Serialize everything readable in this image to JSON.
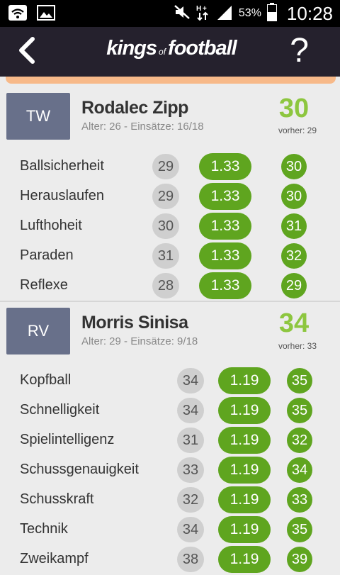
{
  "status_bar": {
    "icons": [
      "wifi-icon",
      "image-icon",
      "mute-icon",
      "data-arrows-icon",
      "signal-icon",
      "battery-icon"
    ],
    "battery": "53%",
    "time": "10:28"
  },
  "header": {
    "logo_part1": "kings",
    "logo_part2": "of",
    "logo_part3": "football",
    "help_label": "?"
  },
  "players": [
    {
      "position": "TW",
      "name": "Rodalec Zipp",
      "meta": "Alter: 26 - Einsätze: 16/18",
      "score": "30",
      "previous": "vorher: 29",
      "skills": [
        {
          "label": "Ballsicherheit",
          "current": "29",
          "factor": "1.33",
          "next": "30"
        },
        {
          "label": "Herauslaufen",
          "current": "29",
          "factor": "1.33",
          "next": "30"
        },
        {
          "label": "Lufthoheit",
          "current": "30",
          "factor": "1.33",
          "next": "31"
        },
        {
          "label": "Paraden",
          "current": "31",
          "factor": "1.33",
          "next": "32"
        },
        {
          "label": "Reflexe",
          "current": "28",
          "factor": "1.33",
          "next": "29"
        }
      ]
    },
    {
      "position": "RV",
      "name": "Morris Sinisa",
      "meta": "Alter: 29 - Einsätze: 9/18",
      "score": "34",
      "previous": "vorher: 33",
      "skills": [
        {
          "label": "Kopfball",
          "current": "34",
          "factor": "1.19",
          "next": "35"
        },
        {
          "label": "Schnelligkeit",
          "current": "34",
          "factor": "1.19",
          "next": "35"
        },
        {
          "label": "Spielintelligenz",
          "current": "31",
          "factor": "1.19",
          "next": "32"
        },
        {
          "label": "Schussgenauigkeit",
          "current": "33",
          "factor": "1.19",
          "next": "34"
        },
        {
          "label": "Schusskraft",
          "current": "32",
          "factor": "1.19",
          "next": "33"
        },
        {
          "label": "Technik",
          "current": "34",
          "factor": "1.19",
          "next": "35"
        },
        {
          "label": "Zweikampf",
          "current": "38",
          "factor": "1.19",
          "next": "39"
        }
      ]
    }
  ],
  "colors": {
    "green": "#5fa51f",
    "score_green": "#8dc63f",
    "header_bg": "#25212d",
    "badge_bg": "#68708a"
  }
}
